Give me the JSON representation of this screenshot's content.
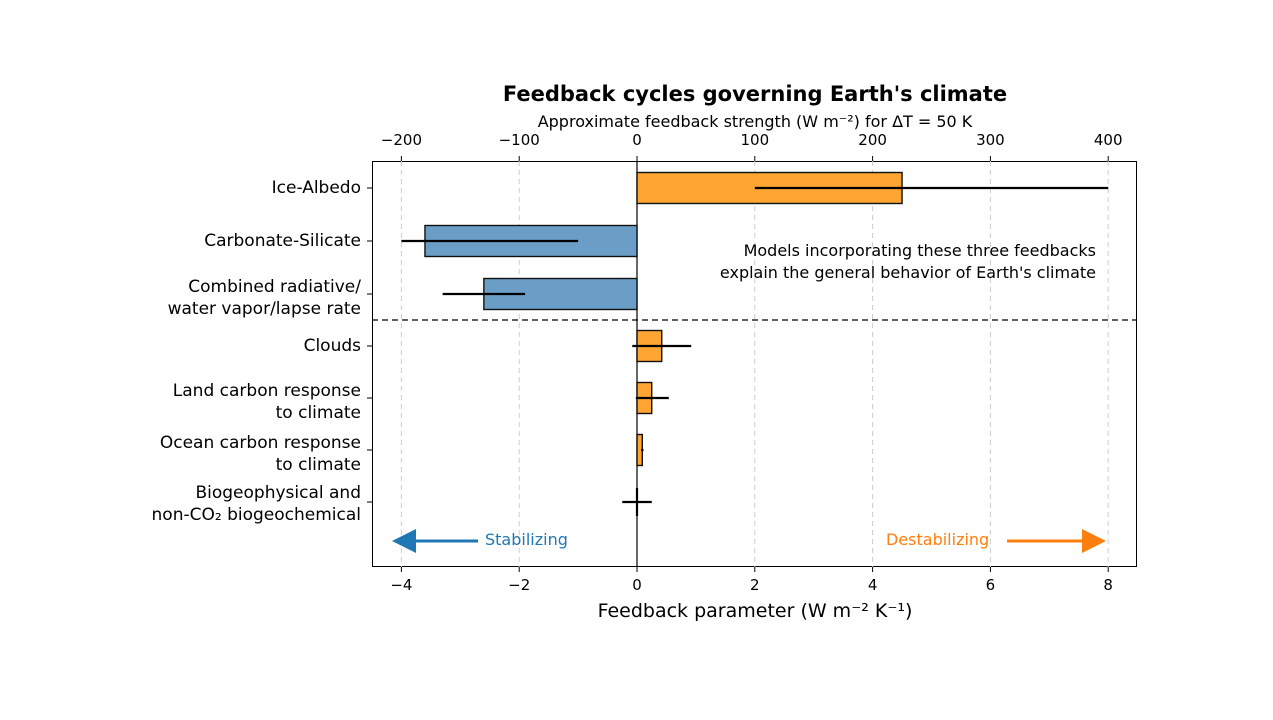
{
  "chart_data": {
    "type": "bar",
    "orientation": "horizontal",
    "title": "Feedback cycles governing Earth's climate",
    "xlabel": "Feedback parameter (W m⁻² K⁻¹)",
    "secondary_xlabel": "Approximate feedback strength (W m⁻²) for ΔT = 50 K",
    "xlim": [
      -4.5,
      8.5
    ],
    "xticks": [
      -4,
      -2,
      0,
      2,
      4,
      6,
      8
    ],
    "xtick_labels": [
      "−4",
      "−2",
      "0",
      "2",
      "4",
      "6",
      "8"
    ],
    "secondary_xticks": [
      -200,
      -100,
      0,
      100,
      200,
      300,
      400
    ],
    "secondary_xtick_labels": [
      "−200",
      "−100",
      "0",
      "100",
      "200",
      "300",
      "400"
    ],
    "grid": "vertical dashed",
    "categories": [
      "Ice-Albedo",
      "Carbonate-Silicate",
      "Combined radiative/\nwater vapor/lapse rate",
      "Clouds",
      "Land carbon response\nto climate",
      "Ocean carbon response\nto climate",
      "Biogeophysical and\nnon-CO₂ biogeochemical"
    ],
    "values": [
      4.5,
      -3.6,
      -2.6,
      0.42,
      0.25,
      0.09,
      0.0
    ],
    "error_low": [
      2.0,
      -4.0,
      -3.3,
      -0.08,
      -0.02,
      0.07,
      -0.25
    ],
    "error_high": [
      8.0,
      -1.0,
      -1.9,
      0.92,
      0.54,
      0.11,
      0.25
    ],
    "colors": [
      "#ffa533",
      "#6b9ec6",
      "#6b9ec6",
      "#ffa533",
      "#ffa533",
      "#ffa533",
      "#ffa533"
    ],
    "separator_after_index": 2,
    "annotations": [
      {
        "text": "Models incorporating these three feedbacks\nexplain the general behavior of Earth's climate"
      },
      {
        "text": "Stabilizing",
        "color": "#1f77b4",
        "arrow": "left"
      },
      {
        "text": "Destabilizing",
        "color": "#ff7f0e",
        "arrow": "right"
      }
    ]
  },
  "labels": {
    "title": "Feedback cycles governing Earth's climate",
    "top_axis": "Approximate feedback strength (W m⁻²) for ΔT = 50 K",
    "bottom_axis": "Feedback parameter (W m⁻² K⁻¹)",
    "annot_line1": "Models incorporating these three feedbacks",
    "annot_line2": "explain the general behavior of Earth's climate",
    "stabilizing": "Stabilizing",
    "destabilizing": "Destabilizing",
    "cat": [
      [
        "Ice-Albedo"
      ],
      [
        "Carbonate-Silicate"
      ],
      [
        "Combined radiative/",
        "water vapor/lapse rate"
      ],
      [
        "Clouds"
      ],
      [
        "Land carbon response",
        "to climate"
      ],
      [
        "Ocean carbon response",
        "to climate"
      ],
      [
        "Biogeophysical and ",
        "non-CO₂ biogeochemical"
      ]
    ]
  }
}
